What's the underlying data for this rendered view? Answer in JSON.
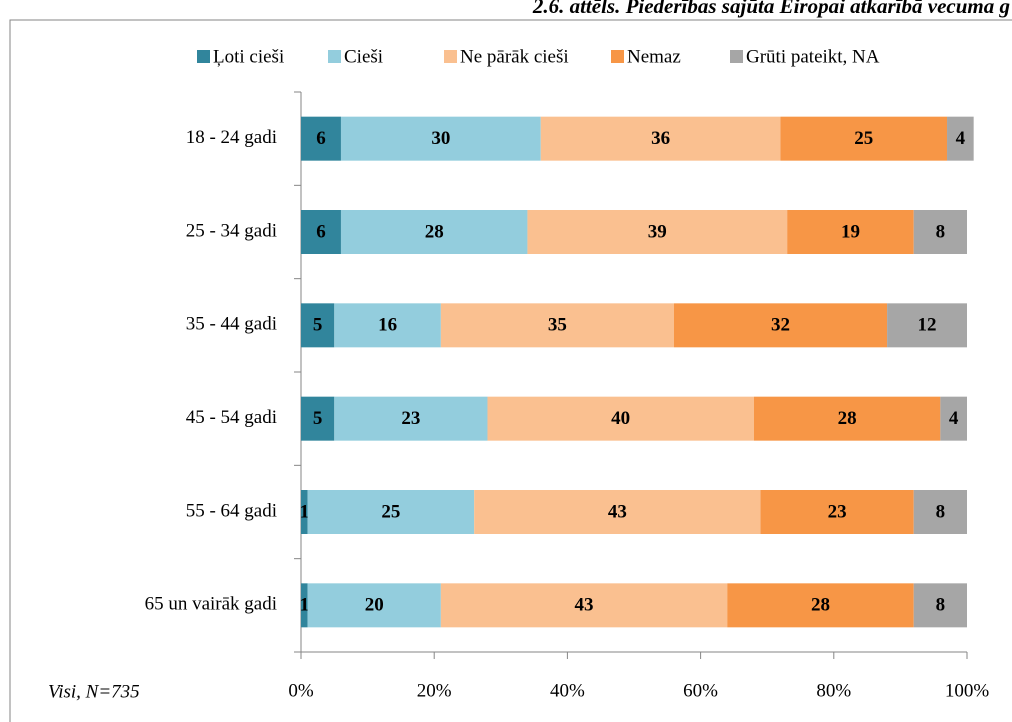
{
  "chart_data": {
    "type": "stacked-bar-horizontal",
    "title": "2.6. attēls. Piederības sajūta Eiropai atkarībā vecuma g",
    "note": "Visi, N=735",
    "categories": [
      "18 - 24 gadi",
      "25 - 34 gadi",
      "35 - 44 gadi",
      "45 - 54 gadi",
      "55 - 64 gadi",
      "65 un vairāk gadi"
    ],
    "series": [
      {
        "name": "Ļoti cieši",
        "color": "#31859c",
        "values": [
          6,
          6,
          5,
          5,
          1,
          1
        ]
      },
      {
        "name": "Cieši",
        "color": "#93cddd",
        "values": [
          30,
          28,
          16,
          23,
          25,
          20
        ]
      },
      {
        "name": "Ne pārāk cieši",
        "color": "#fac090",
        "values": [
          36,
          39,
          35,
          40,
          43,
          43
        ]
      },
      {
        "name": "Nemaz",
        "color": "#f79646",
        "values": [
          25,
          19,
          32,
          28,
          23,
          28
        ]
      },
      {
        "name": "Grūti pateikt, NA",
        "color": "#a6a6a6",
        "values": [
          4,
          8,
          12,
          4,
          8,
          8
        ]
      }
    ],
    "xlim": [
      0,
      100
    ],
    "xticks": [
      {
        "value": 0,
        "label": "0%"
      },
      {
        "value": 20,
        "label": "20%"
      },
      {
        "value": 40,
        "label": "40%"
      },
      {
        "value": 60,
        "label": "60%"
      },
      {
        "value": 80,
        "label": "80%"
      },
      {
        "value": 100,
        "label": "100%"
      }
    ],
    "legend": "top"
  }
}
